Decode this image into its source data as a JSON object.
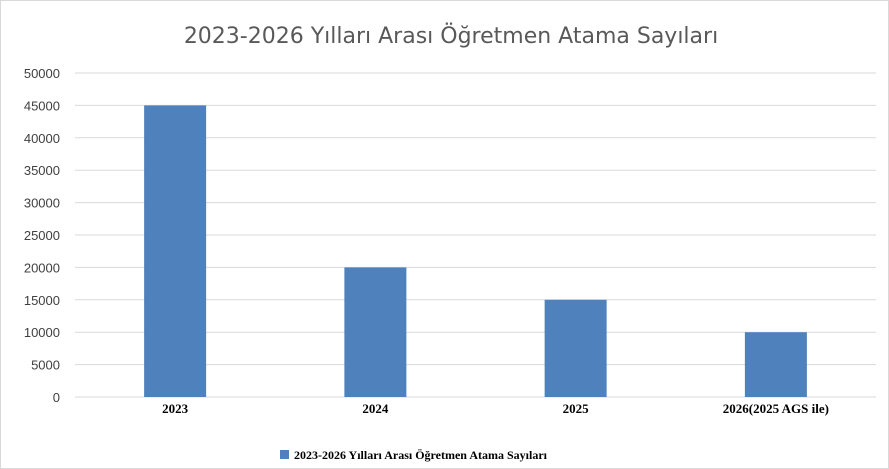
{
  "chart_data": {
    "type": "bar",
    "title": "2023-2026 Yılları Arası Öğretmen Atama Sayıları",
    "categories": [
      "2023",
      "2024",
      "2025",
      "2026(2025 AGS ile)"
    ],
    "series": [
      {
        "name": "2023-2026 Yılları Arası Öğretmen Atama Sayıları",
        "values": [
          45000,
          20000,
          15000,
          10000
        ],
        "color": "#4f81bd"
      }
    ],
    "xlabel": "",
    "ylabel": "",
    "ylim": [
      0,
      50000
    ],
    "yticks": [
      "0",
      "5000",
      "10000",
      "15000",
      "20000",
      "25000",
      "30000",
      "35000",
      "40000",
      "45000",
      "50000"
    ],
    "grid": true,
    "legend_position": "bottom"
  }
}
